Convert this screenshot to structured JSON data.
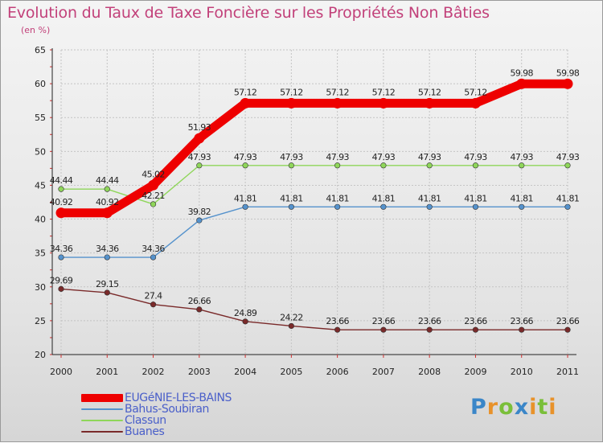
{
  "title": "Evolution du Taux de Taxe Foncière sur les Propriétés Non Bâties",
  "subtitle": "(en %)",
  "chart_data": {
    "type": "line",
    "title": "Evolution du Taux de Taxe Foncière sur les Propriétés Non Bâties",
    "ylabel": "(en %)",
    "xlabel": "",
    "x": [
      "2000",
      "2001",
      "2002",
      "2003",
      "2004",
      "2005",
      "2006",
      "2007",
      "2008",
      "2009",
      "2010",
      "2011"
    ],
    "ylim": [
      20,
      65
    ],
    "yticks": [
      20,
      25,
      30,
      35,
      40,
      45,
      50,
      55,
      60,
      65
    ],
    "grid": true,
    "series": [
      {
        "name": "EUGéNIE-LES-BAINS",
        "color": "#ee0000",
        "values": [
          40.92,
          40.92,
          45.02,
          51.93,
          57.12,
          57.12,
          57.12,
          57.12,
          57.12,
          57.12,
          59.98,
          59.98
        ],
        "labels": [
          "40.92",
          "40.92",
          "45.02",
          "51.93",
          "57.12",
          "57.12",
          "57.12",
          "57.12",
          "57.12",
          "57.12",
          "59.98",
          "59.98"
        ]
      },
      {
        "name": "Bahus-Soubiran",
        "color": "#5592cc",
        "values": [
          34.36,
          34.36,
          34.36,
          39.82,
          41.81,
          41.81,
          41.81,
          41.81,
          41.81,
          41.81,
          41.81,
          41.81
        ],
        "labels": [
          "34.36",
          "34.36",
          "34.36",
          "39.82",
          "41.81",
          "41.81",
          "41.81",
          "41.81",
          "41.81",
          "41.81",
          "41.81",
          "41.81"
        ]
      },
      {
        "name": "Classun",
        "color": "#8fd65a",
        "values": [
          44.44,
          44.44,
          42.21,
          47.93,
          47.93,
          47.93,
          47.93,
          47.93,
          47.93,
          47.93,
          47.93,
          47.93
        ],
        "labels": [
          "44.44",
          "44.44",
          "42.21",
          "47.93",
          "47.93",
          "47.93",
          "47.93",
          "47.93",
          "47.93",
          "47.93",
          "47.93",
          "47.93"
        ]
      },
      {
        "name": "Buanes",
        "color": "#7a2a2a",
        "values": [
          29.69,
          29.15,
          27.4,
          26.66,
          24.89,
          24.22,
          23.66,
          23.66,
          23.66,
          23.66,
          23.66,
          23.66
        ],
        "labels": [
          "29.69",
          "29.15",
          "27.4",
          "26.66",
          "24.89",
          "24.22",
          "23.66",
          "23.66",
          "23.66",
          "23.66",
          "23.66",
          "23.66"
        ]
      }
    ]
  },
  "legend": [
    {
      "label": "EUGéNIE-LES-BAINS",
      "color": "#ee0000"
    },
    {
      "label": "Bahus-Soubiran",
      "color": "#5592cc"
    },
    {
      "label": "Classun",
      "color": "#8fd65a"
    },
    {
      "label": "Buanes",
      "color": "#7a2a2a"
    }
  ],
  "logo": {
    "text": "Proxiti",
    "letters": [
      "P",
      "r",
      "o",
      "x",
      "i",
      "t",
      "i"
    ],
    "colors": [
      "#3a86c8",
      "#e8922a",
      "#7abf3a",
      "#3a86c8",
      "#e8922a",
      "#7abf3a",
      "#e8922a"
    ]
  }
}
